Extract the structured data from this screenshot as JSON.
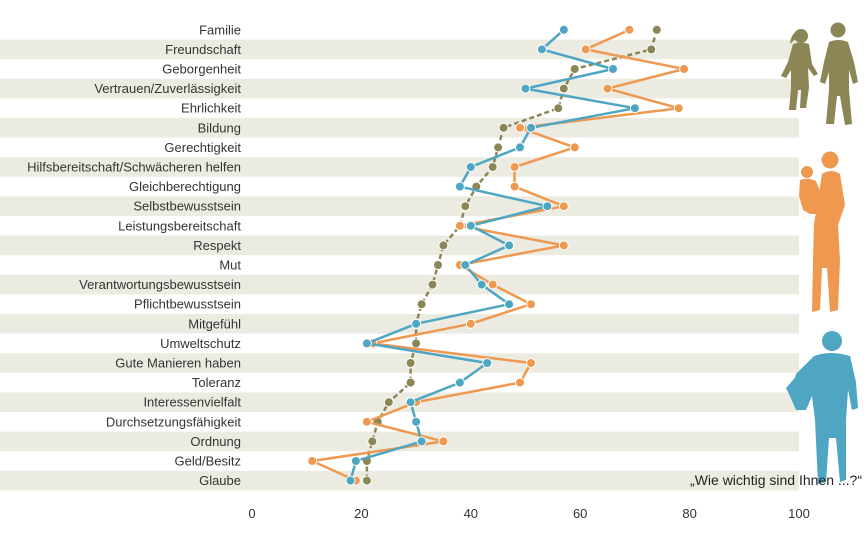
{
  "chart_data": {
    "type": "line",
    "orientation": "horizontal-categories",
    "title": "",
    "xlabel": "",
    "ylabel": "",
    "xlim": [
      0,
      100
    ],
    "x_ticks": [
      "0",
      "20",
      "40",
      "60",
      "80",
      "100"
    ],
    "grid": "alternating-row-bands",
    "legend": "pictograms-right",
    "annotation": "„Wie wichtig sind Ihnen ...?“",
    "categories": [
      "Familie",
      "Freundschaft",
      "Geborgenheit",
      "Vertrauen/Zuverlässigkeit",
      "Ehrlichkeit",
      "Bildung",
      "Gerechtigkeit",
      "Hilfsbereitschaft/Schwächeren helfen",
      "Gleichberechtigung",
      "Selbstbewusstsein",
      "Leistungsbereitschaft",
      "Respekt",
      "Mut",
      "Verantwortungsbewusstsein",
      "Pflichtbewusstsein",
      "Mitgefühl",
      "Umweltschutz",
      "Gute Manieren haben",
      "Toleranz",
      "Interessenvielfalt",
      "Durchsetzungsfähigkeit",
      "Ordnung",
      "Geld/Besitz",
      "Glaube"
    ],
    "series": [
      {
        "key": "olive",
        "color": "#8c8556",
        "pictogram": "children-silhouette",
        "values": [
          74,
          73,
          59,
          57,
          56,
          46,
          45,
          44,
          41,
          39,
          38,
          35,
          34,
          33,
          31,
          30,
          30,
          29,
          29,
          25,
          23,
          22,
          21,
          21
        ]
      },
      {
        "key": "orange",
        "color": "#ef9950",
        "pictogram": "mother-child-silhouette",
        "values": [
          69,
          61,
          79,
          65,
          78,
          49,
          59,
          48,
          48,
          57,
          38,
          57,
          38,
          44,
          51,
          40,
          22,
          51,
          49,
          30,
          21,
          35,
          11,
          19
        ]
      },
      {
        "key": "blue",
        "color": "#4ea6c3",
        "pictogram": "man-silhouette",
        "values": [
          57,
          53,
          66,
          50,
          70,
          51,
          49,
          40,
          38,
          54,
          40,
          47,
          39,
          42,
          47,
          30,
          21,
          43,
          38,
          29,
          30,
          31,
          19,
          18
        ]
      }
    ]
  }
}
